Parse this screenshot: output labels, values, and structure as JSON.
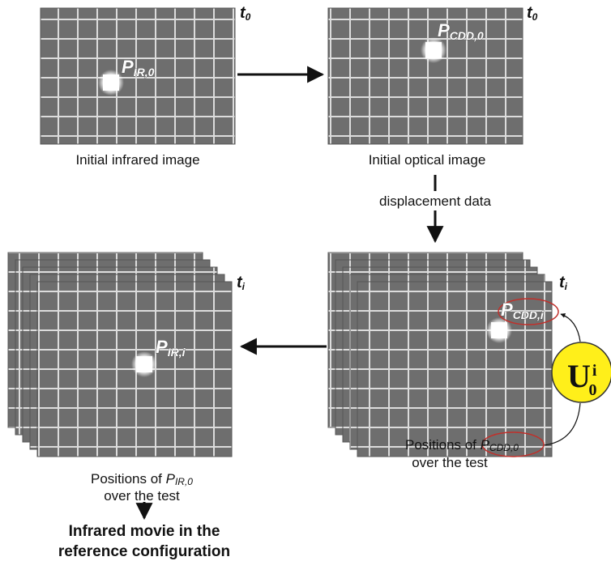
{
  "top_left": {
    "time": {
      "main": "t",
      "sub": "0"
    },
    "point": {
      "main": "P",
      "sub": "IR,0"
    },
    "caption": "Initial infrared image"
  },
  "top_right": {
    "time": {
      "main": "t",
      "sub": "0"
    },
    "point": {
      "main": "P",
      "sub": "CDD,0"
    },
    "caption": "Initial optical image"
  },
  "transition_label": "displacement data",
  "bottom_right": {
    "time": {
      "main": "t",
      "sub": "i"
    },
    "point": {
      "main": "P",
      "sub": "CDD,i"
    },
    "caption": {
      "prefix": "Positions of",
      "point": {
        "main": "P",
        "sub": "CDD,0"
      },
      "line2": "over the test"
    }
  },
  "bottom_left": {
    "time": {
      "main": "t",
      "sub": "i"
    },
    "point": {
      "main": "P",
      "sub": "IR,i"
    },
    "caption": {
      "prefix": "Positions of",
      "point": {
        "main": "P",
        "sub": "IR,0"
      },
      "line2": "over the test"
    }
  },
  "operator": {
    "main": "U",
    "sub": "0",
    "sup": "i"
  },
  "result": [
    "Infrared movie in the",
    "reference configuration"
  ]
}
